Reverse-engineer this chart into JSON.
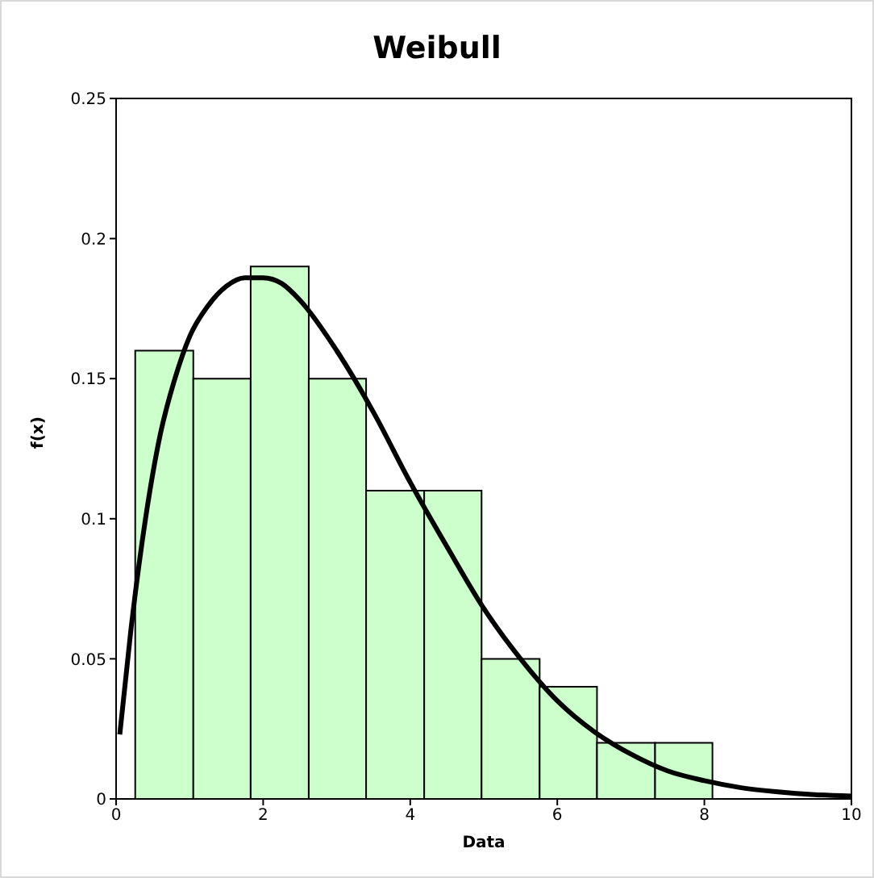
{
  "chart_data": {
    "type": "histogram",
    "title": "Weibull",
    "xlabel": "Data",
    "ylabel": "f(x)",
    "bins": [
      0.26,
      1.05,
      1.83,
      2.62,
      3.4,
      4.19,
      4.97,
      5.76,
      6.54,
      7.33,
      8.11
    ],
    "values": [
      0.16,
      0.15,
      0.19,
      0.15,
      0.11,
      0.11,
      0.05,
      0.04,
      0.02,
      0.02
    ],
    "color": "#ccffcc",
    "series": [
      {
        "type": "line",
        "color": "#000000",
        "x": [
          0.05,
          0.2,
          0.4,
          0.6,
          0.8,
          1.0,
          1.25,
          1.5,
          1.75,
          2.0,
          2.25,
          2.5,
          3.0,
          3.5,
          4.0,
          4.5,
          5.0,
          5.5,
          6.0,
          6.5,
          7.0,
          7.5,
          8.0,
          8.5,
          9.0,
          9.5,
          10.0
        ],
        "values": [
          0.023,
          0.06,
          0.1,
          0.13,
          0.15,
          0.165,
          0.176,
          0.183,
          0.186,
          0.186,
          0.184,
          0.178,
          0.16,
          0.138,
          0.113,
          0.09,
          0.068,
          0.05,
          0.035,
          0.024,
          0.016,
          0.01,
          0.0065,
          0.004,
          0.0025,
          0.0015,
          0.001
        ]
      }
    ],
    "xlim": [
      0,
      10
    ],
    "xticks": [
      0,
      2,
      4,
      6,
      8,
      10
    ],
    "ylim": [
      0,
      0.25
    ],
    "yticks": [
      0,
      0.05,
      0.1,
      0.15,
      0.2,
      0.25
    ],
    "grid": false,
    "legend": false,
    "marker": "none",
    "line_style": "solid"
  }
}
